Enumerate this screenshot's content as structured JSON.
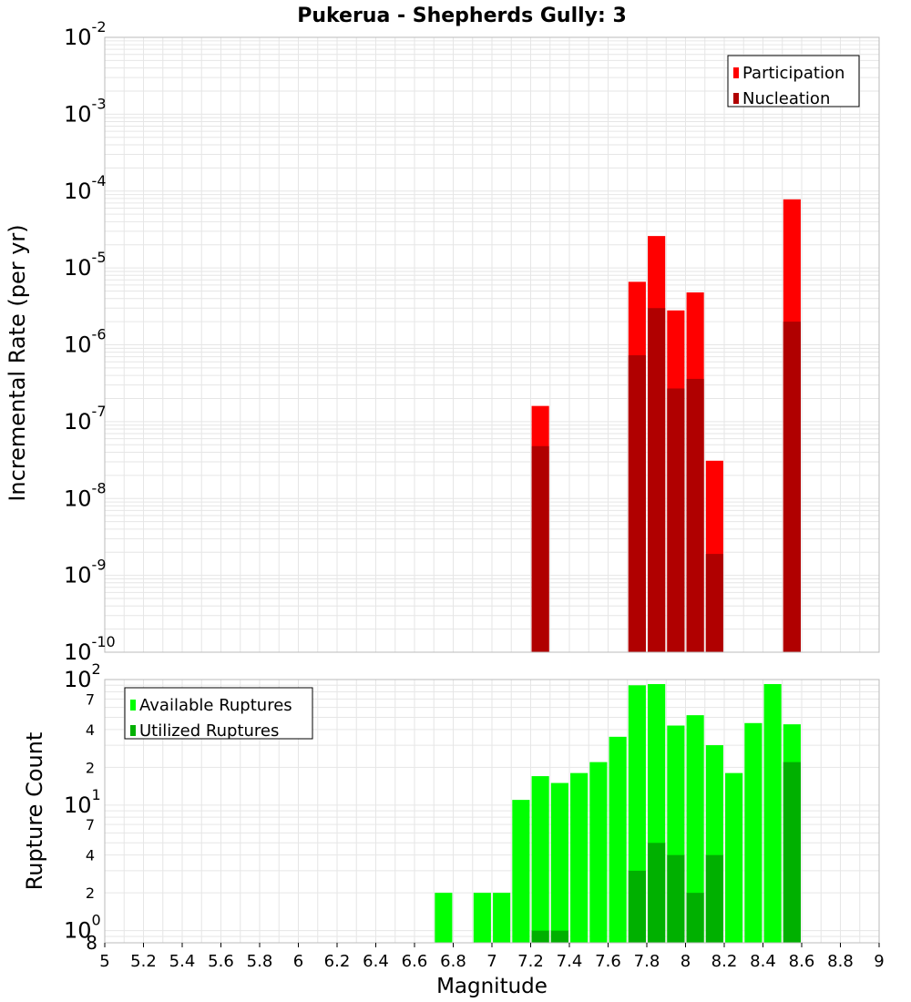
{
  "title": "Pukerua - Shepherds Gully: 3",
  "xlabel": "Magnitude",
  "x_ticks": [
    "5",
    "5.2",
    "5.4",
    "5.6",
    "5.8",
    "6",
    "6.2",
    "6.4",
    "6.6",
    "6.8",
    "7",
    "7.2",
    "7.4",
    "7.6",
    "7.8",
    "8",
    "8.2",
    "8.4",
    "8.6",
    "8.8",
    "9"
  ],
  "colors": {
    "participation": "#ff0000",
    "nucleation": "#b00000",
    "available": "#00ff00",
    "utilized": "#00b000",
    "grid": "#e6e6e6",
    "border": "#bbbbbb"
  },
  "chart_data": [
    {
      "type": "bar",
      "ylabel": "Incremental Rate (per yr)",
      "yscale": "log",
      "ylim": [
        1e-10,
        0.01
      ],
      "xlim": [
        5,
        9
      ],
      "grid": true,
      "legend_position": "top-right",
      "y_tick_bases": [
        "10",
        "10",
        "10",
        "10",
        "10",
        "10",
        "10",
        "10",
        "10"
      ],
      "y_tick_exponents": [
        "-10",
        "-9",
        "-8",
        "-7",
        "-6",
        "-5",
        "-4",
        "-3",
        "-2"
      ],
      "series": [
        {
          "name": "Participation",
          "x": [
            7.25,
            7.75,
            7.85,
            7.95,
            8.05,
            8.15,
            8.55
          ],
          "values": [
            1.6e-07,
            6.6e-06,
            2.6e-05,
            2.8e-06,
            4.8e-06,
            3.1e-08,
            7.8e-05
          ]
        },
        {
          "name": "Nucleation",
          "x": [
            7.25,
            7.75,
            7.85,
            7.95,
            8.05,
            8.15,
            8.55
          ],
          "values": [
            4.8e-08,
            7.3e-07,
            3e-06,
            2.7e-07,
            3.6e-07,
            1.9e-09,
            2e-06
          ]
        }
      ]
    },
    {
      "type": "bar",
      "ylabel": "Rupture Count",
      "yscale": "log",
      "ylim": [
        0.8,
        100
      ],
      "xlim": [
        5,
        9
      ],
      "grid": true,
      "legend_position": "top-left",
      "y_major_bases": [
        "10",
        "10",
        "10"
      ],
      "y_major_exponents": [
        "0",
        "1",
        "2"
      ],
      "y_minor_labels": [
        "2",
        "4",
        "7",
        "2",
        "4",
        "7"
      ],
      "y_bottom_label": "8",
      "series": [
        {
          "name": "Available Ruptures",
          "x": [
            6.75,
            6.95,
            7.05,
            7.15,
            7.25,
            7.35,
            7.45,
            7.55,
            7.65,
            7.75,
            7.85,
            7.95,
            8.05,
            8.15,
            8.25,
            8.35,
            8.45,
            8.55
          ],
          "values": [
            2,
            2,
            2,
            11,
            17,
            15,
            18,
            22,
            35,
            90,
            92,
            43,
            52,
            30,
            18,
            45,
            92,
            44
          ]
        },
        {
          "name": "Utilized Ruptures",
          "x": [
            7.25,
            7.35,
            7.75,
            7.85,
            7.95,
            8.05,
            8.15,
            8.55
          ],
          "values": [
            1,
            1,
            3,
            5,
            4,
            2,
            4,
            22
          ]
        }
      ]
    }
  ]
}
